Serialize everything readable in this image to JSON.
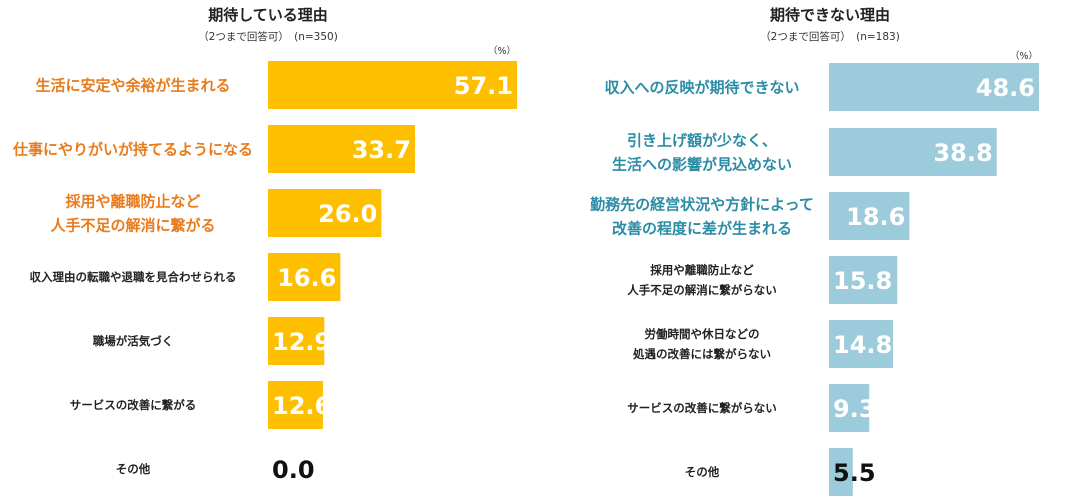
{
  "chart_data": [
    {
      "type": "bar",
      "orientation": "horizontal",
      "title": "期待している理由",
      "subtitle": "（2つまで回答可）　(n=350)",
      "unit_label": "（%）",
      "color": "#FDBF00",
      "highlight_label_color": "#E87B1C",
      "xlim": [
        0,
        57.1
      ],
      "categories": [
        [
          "生活に安定や余裕が生まれる"
        ],
        [
          "仕事にやりがいが持てるようになる"
        ],
        [
          "採用や離職防止など",
          "人手不足の解消に繋がる"
        ],
        [
          "収入理由の転職や退職を見合わせられる"
        ],
        [
          "職場が活気づく"
        ],
        [
          "サービスの改善に繋がる"
        ],
        [
          "その他"
        ]
      ],
      "highlighted": [
        true,
        true,
        true,
        false,
        false,
        false,
        false
      ],
      "values": [
        57.1,
        33.7,
        26.0,
        16.6,
        12.9,
        12.6,
        0.0
      ],
      "value_labels": [
        "57.1",
        "33.7",
        "26.0",
        "16.6",
        "12.9",
        "12.6",
        "0.0"
      ]
    },
    {
      "type": "bar",
      "orientation": "horizontal",
      "title": "期待できない理由",
      "subtitle": "（2つまで回答可）　(n=183)",
      "unit_label": "（%）",
      "color": "#9CCBDB",
      "highlight_label_color": "#2B8DA5",
      "xlim": [
        0,
        48.6
      ],
      "categories": [
        [
          "収入への反映が期待できない"
        ],
        [
          "引き上げ額が少なく、",
          "生活への影響が見込めない"
        ],
        [
          "勤務先の経営状況や方針によって",
          "改善の程度に差が生まれる"
        ],
        [
          "採用や離職防止など",
          "人手不足の解消に繋がらない"
        ],
        [
          "労働時間や休日などの",
          "処遇の改善には繋がらない"
        ],
        [
          "サービスの改善に繋がらない"
        ],
        [
          "その他"
        ]
      ],
      "highlighted": [
        true,
        true,
        true,
        false,
        false,
        false,
        false
      ],
      "values": [
        48.6,
        38.8,
        18.6,
        15.8,
        14.8,
        9.3,
        5.5
      ],
      "value_labels": [
        "48.6",
        "38.8",
        "18.6",
        "15.8",
        "14.8",
        "9.3",
        "5.5"
      ]
    }
  ]
}
